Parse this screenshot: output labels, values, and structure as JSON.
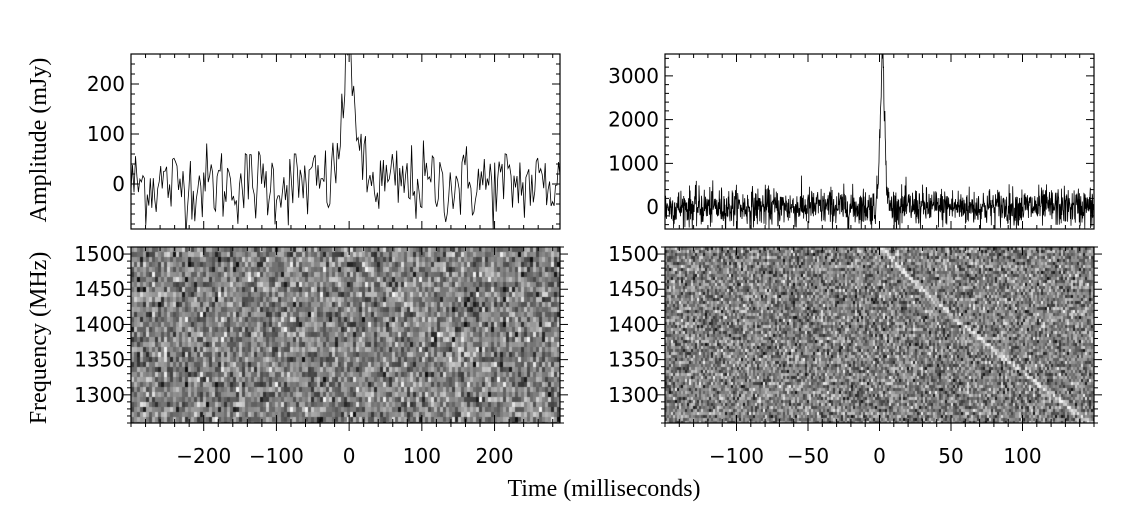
{
  "figure": {
    "left_ylabel_top": "Amplitude (mJy)",
    "left_ylabel_bottom": "Frequency (MHz)",
    "xlabel": "Time (milliseconds)"
  },
  "chart_data": [
    {
      "panel": "top-left",
      "type": "line",
      "xlim": [
        -300,
        290
      ],
      "ylim": [
        -90,
        260
      ],
      "xticks": [
        -200,
        -100,
        0,
        100,
        200
      ],
      "yticks": [
        0,
        100,
        200
      ],
      "ytick_labels": [
        "0",
        "100",
        "200"
      ],
      "ylabel": "Amplitude (mJy)",
      "pulse": {
        "peak_time": 0,
        "peak_amplitude": 255,
        "rms": 40
      }
    },
    {
      "panel": "top-right",
      "type": "line",
      "xlim": [
        -150,
        150
      ],
      "ylim": [
        -500,
        3500
      ],
      "xticks": [
        -100,
        -50,
        0,
        50,
        100
      ],
      "yticks": [
        0,
        1000,
        2000,
        3000
      ],
      "ytick_labels": [
        "0",
        "1000",
        "2000",
        "3000"
      ],
      "pulse": {
        "peak_time": 2,
        "peak_amplitude": 3400,
        "rms": 220
      }
    },
    {
      "panel": "bottom-left",
      "type": "heatmap",
      "xlim": [
        -300,
        290
      ],
      "ylim": [
        1260,
        1510
      ],
      "xticks": [
        -200,
        -100,
        0,
        100,
        200
      ],
      "xtick_labels": [
        "−200",
        "−100",
        "0",
        "100",
        "200"
      ],
      "yticks": [
        1300,
        1350,
        1400,
        1450,
        1500
      ],
      "ytick_labels": [
        "1300",
        "1350",
        "1400",
        "1450",
        "1500"
      ],
      "ylabel": "Frequency (MHz)",
      "sweep": {
        "t_at_top": 0,
        "t_at_bottom": 290
      }
    },
    {
      "panel": "bottom-right",
      "type": "heatmap",
      "xlim": [
        -150,
        150
      ],
      "ylim": [
        1260,
        1510
      ],
      "xticks": [
        -100,
        -50,
        0,
        50,
        100
      ],
      "xtick_labels": [
        "−100",
        "−50",
        "0",
        "50",
        "100"
      ],
      "yticks": [
        1300,
        1350,
        1400,
        1450,
        1500
      ],
      "ytick_labels": [
        "1300",
        "1350",
        "1400",
        "1450",
        "1500"
      ],
      "sweep": {
        "t_at_top": 2,
        "t_at_bottom": 148
      }
    }
  ]
}
